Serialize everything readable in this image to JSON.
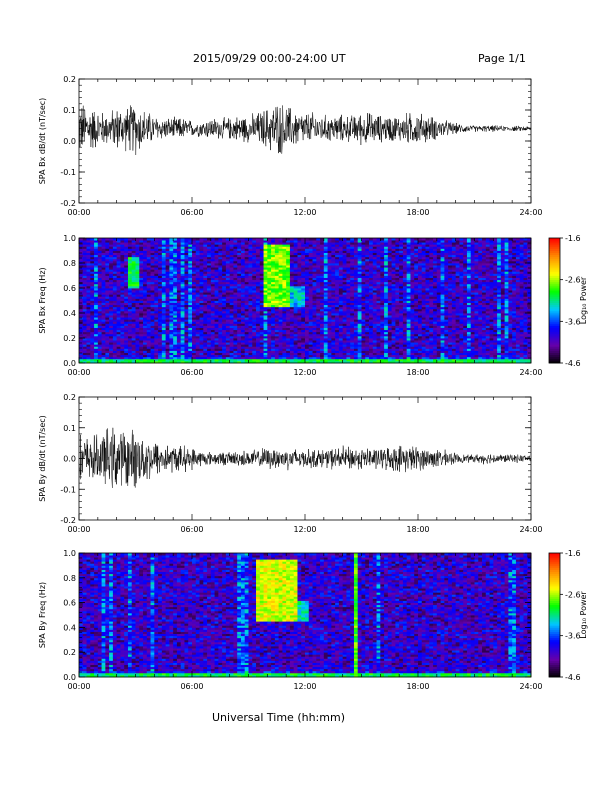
{
  "header": {
    "title": "2015/09/29  00:00-24:00 UT",
    "page": "Page 1/1"
  },
  "x_axis_title": "Universal Time (hh:mm)",
  "chart_data": [
    {
      "type": "line",
      "ylabel": "SPA Bx dB/dt (nT/sec)",
      "xticklabels": [
        "00:00",
        "06:00",
        "12:00",
        "18:00",
        "24:00"
      ],
      "xlim": [
        0,
        24
      ],
      "ylim": [
        -0.2,
        0.2
      ],
      "yticks": [
        -0.2,
        -0.1,
        0.0,
        0.1,
        0.2
      ],
      "yticklabels": [
        "-0.2",
        "-0.1",
        "0.0",
        "0.1",
        "0.2"
      ],
      "line_color": "#000000",
      "series": [
        {
          "x": [
            0,
            0.5,
            1,
            1.5,
            2,
            2.5,
            3,
            3.5,
            4,
            4.5,
            5,
            5.5,
            6,
            6.5,
            7,
            7.5,
            8,
            8.5,
            9,
            9.5,
            10,
            10.5,
            11,
            11.5,
            12,
            12.5,
            13,
            13.5,
            14,
            14.5,
            15,
            15.5,
            16,
            16.5,
            17,
            17.5,
            18,
            18.5,
            19,
            19.5,
            20,
            20.5,
            21,
            21.5,
            22,
            22.5,
            23,
            23.5,
            24
          ],
          "mean": [
            0.04,
            0.04,
            0.04,
            0.04,
            0.04,
            0.04,
            0.04,
            0.04,
            0.04,
            0.04,
            0.04,
            0.04,
            0.04,
            0.04,
            0.04,
            0.04,
            0.04,
            0.04,
            0.04,
            0.04,
            0.04,
            0.04,
            0.04,
            0.04,
            0.04,
            0.04,
            0.04,
            0.04,
            0.04,
            0.04,
            0.04,
            0.04,
            0.04,
            0.04,
            0.04,
            0.04,
            0.04,
            0.04,
            0.04,
            0.04,
            0.04,
            0.04,
            0.04,
            0.04,
            0.04,
            0.04,
            0.04,
            0.04,
            0.04
          ],
          "envelope": [
            0.1,
            0.09,
            0.07,
            0.06,
            0.08,
            0.08,
            0.1,
            0.07,
            0.05,
            0.04,
            0.04,
            0.04,
            0.03,
            0.03,
            0.04,
            0.04,
            0.04,
            0.05,
            0.05,
            0.06,
            0.08,
            0.1,
            0.09,
            0.07,
            0.06,
            0.06,
            0.05,
            0.05,
            0.05,
            0.05,
            0.06,
            0.06,
            0.05,
            0.05,
            0.05,
            0.06,
            0.06,
            0.05,
            0.04,
            0.03,
            0.02,
            0.015,
            0.012,
            0.012,
            0.012,
            0.01,
            0.01,
            0.01,
            0.01
          ]
        }
      ]
    },
    {
      "type": "heatmap",
      "ylabel": "SPA Bx Freq (Hz)",
      "xticklabels": [
        "00:00",
        "06:00",
        "12:00",
        "18:00",
        "24:00"
      ],
      "xlim": [
        0,
        24
      ],
      "ylim": [
        0.0,
        1.0
      ],
      "yticks": [
        0.0,
        0.2,
        0.4,
        0.6,
        0.8,
        1.0
      ],
      "yticklabels": [
        "0.0",
        "0.2",
        "0.4",
        "0.6",
        "0.8",
        "1.0"
      ],
      "colorbar": {
        "label": "Log₁₀ Power",
        "range": [
          -4.6,
          -1.6
        ],
        "ticks": [
          -4.6,
          -3.6,
          -2.6,
          -1.6
        ],
        "ticklabels": [
          "-4.6",
          "-3.6",
          "-2.6",
          "-1.6"
        ],
        "colors": [
          "#000000",
          "#6600aa",
          "#0000ff",
          "#00c8ff",
          "#00ff00",
          "#ffff00",
          "#ff8800",
          "#ff0000"
        ]
      },
      "background_level": -4.0,
      "features": [
        {
          "t0": 0,
          "t1": 24,
          "f0": 0.0,
          "f1": 0.04,
          "level": -3.0
        },
        {
          "t0": 2.6,
          "t1": 3.3,
          "f0": 0.6,
          "f1": 0.85,
          "level": -3.0
        },
        {
          "t0": 9.8,
          "t1": 11.2,
          "f0": 0.45,
          "f1": 0.95,
          "level": -2.7
        },
        {
          "t0": 11.0,
          "t1": 12.0,
          "f0": 0.45,
          "f1": 0.62,
          "level": -3.3
        }
      ]
    },
    {
      "type": "line",
      "ylabel": "SPA By dB/dt (nT/sec)",
      "xticklabels": [
        "00:00",
        "06:00",
        "12:00",
        "18:00",
        "24:00"
      ],
      "xlim": [
        0,
        24
      ],
      "ylim": [
        -0.2,
        0.2
      ],
      "yticks": [
        -0.2,
        -0.1,
        0.0,
        0.1,
        0.2
      ],
      "yticklabels": [
        "-0.2",
        "-0.1",
        "0.0",
        "0.1",
        "0.2"
      ],
      "line_color": "#000000",
      "series": [
        {
          "x": [
            0,
            0.5,
            1,
            1.5,
            2,
            2.5,
            3,
            3.5,
            4,
            4.5,
            5,
            5.5,
            6,
            6.5,
            7,
            7.5,
            8,
            8.5,
            9,
            9.5,
            10,
            10.5,
            11,
            11.5,
            12,
            12.5,
            13,
            13.5,
            14,
            14.5,
            15,
            15.5,
            16,
            16.5,
            17,
            17.5,
            18,
            18.5,
            19,
            19.5,
            20,
            20.5,
            21,
            21.5,
            22,
            22.5,
            23,
            23.5,
            24
          ],
          "mean": [
            0.0,
            0.0,
            0.0,
            0.0,
            0.0,
            0.0,
            0.0,
            0.0,
            0.0,
            0.0,
            0.0,
            0.0,
            0.0,
            0.0,
            0.0,
            0.0,
            0.0,
            0.0,
            0.0,
            0.0,
            0.0,
            0.0,
            0.0,
            0.0,
            0.0,
            0.0,
            0.0,
            0.0,
            0.0,
            0.0,
            0.0,
            0.0,
            0.0,
            0.0,
            0.0,
            0.0,
            0.0,
            0.0,
            0.0,
            0.0,
            0.0,
            0.0,
            0.0,
            0.0,
            0.0,
            0.0,
            0.0,
            0.0,
            0.0
          ],
          "envelope": [
            0.09,
            0.08,
            0.09,
            0.11,
            0.12,
            0.1,
            0.11,
            0.09,
            0.07,
            0.06,
            0.05,
            0.05,
            0.04,
            0.03,
            0.025,
            0.025,
            0.025,
            0.03,
            0.03,
            0.035,
            0.04,
            0.04,
            0.04,
            0.04,
            0.035,
            0.035,
            0.035,
            0.04,
            0.045,
            0.045,
            0.04,
            0.04,
            0.04,
            0.045,
            0.05,
            0.05,
            0.045,
            0.04,
            0.035,
            0.03,
            0.02,
            0.015,
            0.015,
            0.02,
            0.02,
            0.015,
            0.015,
            0.015,
            0.015
          ]
        }
      ]
    },
    {
      "type": "heatmap",
      "ylabel": "SPA By Freq (Hz)",
      "xticklabels": [
        "00:00",
        "06:00",
        "12:00",
        "18:00",
        "24:00"
      ],
      "xlim": [
        0,
        24
      ],
      "ylim": [
        0.0,
        1.0
      ],
      "yticks": [
        0.0,
        0.2,
        0.4,
        0.6,
        0.8,
        1.0
      ],
      "yticklabels": [
        "0.0",
        "0.2",
        "0.4",
        "0.6",
        "0.8",
        "1.0"
      ],
      "colorbar": {
        "label": "Log₁₀ Power",
        "range": [
          -4.6,
          -1.6
        ],
        "ticks": [
          -4.6,
          -3.6,
          -2.6,
          -1.6
        ],
        "ticklabels": [
          "-4.6",
          "-3.6",
          "-2.6",
          "-1.6"
        ],
        "colors": [
          "#000000",
          "#6600aa",
          "#0000ff",
          "#00c8ff",
          "#00ff00",
          "#ffff00",
          "#ff8800",
          "#ff0000"
        ]
      },
      "background_level": -4.0,
      "features": [
        {
          "t0": 0,
          "t1": 24,
          "f0": 0.0,
          "f1": 0.04,
          "level": -3.0
        },
        {
          "t0": 9.5,
          "t1": 11.5,
          "f0": 0.45,
          "f1": 0.95,
          "level": -2.5
        },
        {
          "t0": 11.3,
          "t1": 12.2,
          "f0": 0.45,
          "f1": 0.62,
          "level": -3.2
        },
        {
          "t0": 14.7,
          "t1": 14.8,
          "f0": 0.0,
          "f1": 1.0,
          "level": -2.8
        }
      ]
    }
  ]
}
